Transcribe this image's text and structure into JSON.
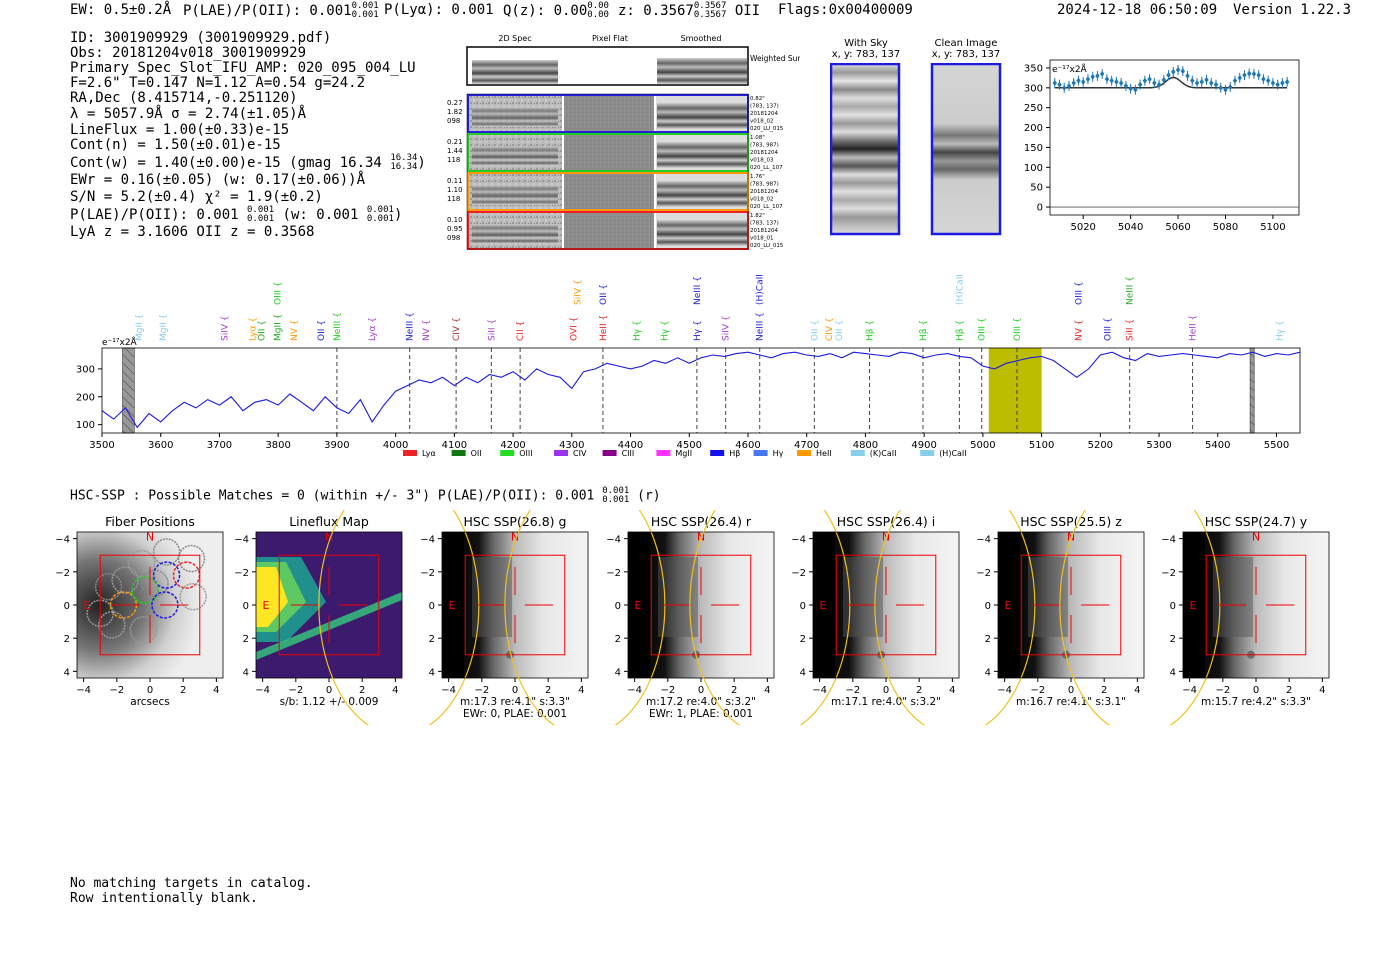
{
  "header": {
    "ew": "EW: 0.5±0.2Å",
    "plae_label": "P(LAE)/P(OII): 0.001",
    "plae_hi": "0.001",
    "plae_lo": "0.001",
    "plya": "P(Lyα): 0.001",
    "qz_label": "Q(z): 0.00",
    "qz_hi": "0.00",
    "qz_lo": "0.00",
    "z_label": "z: 0.3567",
    "z_hi": "0.3567",
    "z_lo": "0.3567",
    "z_line": "OII",
    "flags": "Flags:0x00400009",
    "timestamp": "2024-12-18 06:50:09",
    "version": "Version 1.22.3"
  },
  "info": {
    "id": "ID: 3001909929 (3001909929.pdf)",
    "obs": "Obs: 20181204v018_3001909929",
    "primary": "Primary Spec_Slot_IFU_AMP: 020_095_004_LU",
    "fit": "F=2.6\"  T=0.147  N=1.12  A=0.54  g=24.2",
    "radec": "RA,Dec (8.415714,-0.251120)",
    "lambda": "λ = 5057.9Å   σ = 2.74(±1.05)Å",
    "lineflux": "LineFlux = 1.00(±0.33)e-15",
    "contn": "Cont(n) = 1.50(±0.01)e-15",
    "contw": "Cont(w) = 1.40(±0.00)e-15 (gmag 16.34",
    "contw_hi": "16.34",
    "contw_lo": "16.34",
    "contw_end": ")",
    "ewr": "EWr = 0.16(±0.05) (w: 0.17(±0.06))Å",
    "sn": "S/N = 5.2(±0.4)  χ² = 1.9(±0.2)",
    "plae": "P(LAE)/P(OII): 0.001",
    "plae_hi": "0.001",
    "plae_lo": "0.001",
    "plae_w": "(w: 0.001",
    "plae_w_hi": "0.001",
    "plae_w_lo": "0.001",
    "plae_w_end": ")",
    "lya": "LyA z = 3.1606   OII z = 0.3568"
  },
  "cutouts": {
    "col_titles": [
      "2D Spec",
      "Pixel Flat",
      "Smoothed"
    ],
    "weighted_sum": "Weighted Sum",
    "rows": [
      {
        "left": [
          "0.27",
          "1.82",
          "098"
        ],
        "right": [
          "0.82\"",
          "(783, 137)",
          "20181204",
          "v018_02",
          "020_LU_015"
        ],
        "color": "#2222dd"
      },
      {
        "left": [
          "0.21",
          "1.44",
          "118"
        ],
        "right": [
          "1.08\"",
          "(783, 987)",
          "20181204",
          "v018_03",
          "020_LL_107"
        ],
        "color": "#22cc22"
      },
      {
        "left": [
          "0.11",
          "1.10",
          "118"
        ],
        "right": [
          "1.76\"",
          "(783, 987)",
          "20181204",
          "v018_02",
          "020_LL_107"
        ],
        "color": "#ff9900"
      },
      {
        "left": [
          "0.10",
          "0.95",
          "098"
        ],
        "right": [
          "1.82\"",
          "(783, 137)",
          "20181204",
          "v018_01",
          "020_LU_015"
        ],
        "color": "#ee2222"
      }
    ],
    "sky_title": "With Sky",
    "sky_sub": "x, y: 783, 137",
    "clean_title": "Clean Image",
    "clean_sub": "x, y: 783, 137"
  },
  "zoom_chart": {
    "type": "scatter",
    "ylabel": "e⁻¹⁷x2Å",
    "xticks": [
      5020,
      5040,
      5060,
      5080,
      5100
    ],
    "yticks": [
      0,
      50,
      100,
      150,
      200,
      250,
      300,
      350
    ],
    "xlim": [
      5006,
      5111
    ],
    "ylim": [
      -20,
      370
    ],
    "x": [
      5008,
      5010,
      5012,
      5014,
      5016,
      5018,
      5020,
      5022,
      5024,
      5026,
      5028,
      5030,
      5032,
      5034,
      5036,
      5038,
      5040,
      5042,
      5044,
      5046,
      5048,
      5050,
      5052,
      5054,
      5056,
      5058,
      5060,
      5062,
      5064,
      5066,
      5068,
      5070,
      5072,
      5074,
      5076,
      5078,
      5080,
      5082,
      5084,
      5086,
      5088,
      5090,
      5092,
      5094,
      5096,
      5098,
      5100,
      5102,
      5104,
      5106
    ],
    "y": [
      312,
      308,
      300,
      305,
      312,
      318,
      315,
      322,
      328,
      330,
      335,
      322,
      318,
      315,
      312,
      305,
      298,
      295,
      308,
      318,
      322,
      312,
      308,
      320,
      332,
      340,
      345,
      342,
      330,
      318,
      312,
      315,
      320,
      312,
      308,
      300,
      295,
      302,
      318,
      325,
      332,
      336,
      335,
      332,
      322,
      318,
      312,
      308,
      312,
      315
    ],
    "model_baseline": 300,
    "model_peak": 326,
    "model_center": 5058,
    "model_sigma": 3.2
  },
  "spectrum": {
    "type": "line",
    "ylabel": "e⁻¹⁷x2Å",
    "xlim": [
      3500,
      5540
    ],
    "ylim": [
      70,
      375
    ],
    "xticks": [
      3500,
      3600,
      3700,
      3800,
      3900,
      4000,
      4100,
      4200,
      4300,
      4400,
      4500,
      4600,
      4700,
      4800,
      4900,
      5000,
      5100,
      5200,
      5300,
      5400,
      5500
    ],
    "yticks": [
      100,
      200,
      300
    ],
    "x": [
      3500,
      3520,
      3540,
      3560,
      3580,
      3600,
      3620,
      3640,
      3660,
      3680,
      3700,
      3720,
      3740,
      3760,
      3780,
      3800,
      3820,
      3840,
      3860,
      3880,
      3900,
      3920,
      3940,
      3960,
      3980,
      4000,
      4020,
      4040,
      4060,
      4080,
      4100,
      4120,
      4140,
      4160,
      4180,
      4200,
      4220,
      4240,
      4260,
      4280,
      4300,
      4320,
      4340,
      4360,
      4380,
      4400,
      4420,
      4440,
      4460,
      4480,
      4500,
      4520,
      4540,
      4560,
      4580,
      4600,
      4620,
      4640,
      4660,
      4680,
      4700,
      4720,
      4740,
      4760,
      4780,
      4800,
      4820,
      4840,
      4860,
      4880,
      4900,
      4920,
      4940,
      4960,
      4980,
      5000,
      5020,
      5040,
      5060,
      5080,
      5100,
      5120,
      5140,
      5160,
      5180,
      5200,
      5220,
      5240,
      5260,
      5280,
      5300,
      5320,
      5340,
      5360,
      5380,
      5400,
      5420,
      5440,
      5460,
      5480,
      5500,
      5520,
      5540
    ],
    "y": [
      150,
      120,
      160,
      90,
      140,
      110,
      150,
      180,
      160,
      190,
      170,
      200,
      150,
      180,
      190,
      170,
      210,
      180,
      150,
      200,
      160,
      140,
      190,
      110,
      170,
      220,
      240,
      260,
      250,
      270,
      240,
      270,
      250,
      280,
      270,
      290,
      260,
      300,
      280,
      270,
      230,
      290,
      300,
      320,
      310,
      300,
      310,
      330,
      320,
      340,
      320,
      340,
      350,
      345,
      355,
      360,
      350,
      340,
      355,
      360,
      350,
      345,
      355,
      340,
      360,
      355,
      350,
      345,
      360,
      355,
      340,
      350,
      355,
      345,
      340,
      310,
      300,
      320,
      330,
      340,
      345,
      330,
      300,
      270,
      300,
      350,
      360,
      340,
      330,
      355,
      345,
      350,
      355,
      350,
      345,
      340,
      355,
      350,
      360,
      345,
      355,
      350,
      360
    ],
    "lines": [
      {
        "name": "MgII",
        "x": 3563,
        "color": "#87ceeb",
        "level": 1,
        "dashed": false
      },
      {
        "name": "MgII",
        "x": 3604,
        "color": "#87ceeb",
        "level": 1,
        "dashed": false
      },
      {
        "name": "SiIV",
        "x": 3709,
        "color": "#a040d0",
        "level": 1,
        "dashed": false
      },
      {
        "name": "Lyα",
        "x": 3756,
        "color": "#ff9900",
        "level": 1,
        "dashed": false
      },
      {
        "name": "OII",
        "x": 3772,
        "color": "#22aa22",
        "level": 1,
        "dashed": false
      },
      {
        "name": "MgII",
        "x": 3799,
        "color": "#22aa22",
        "level": 1,
        "dashed": false
      },
      {
        "name": "OIII",
        "x": 3799,
        "color": "#22cc22",
        "level": 0,
        "dashed": false
      },
      {
        "name": "NV",
        "x": 3827,
        "color": "#ff9900",
        "level": 1,
        "dashed": false
      },
      {
        "name": "OII",
        "x": 3873,
        "color": "#2222dd",
        "level": 1,
        "dashed": false
      },
      {
        "name": "NeIII",
        "x": 3900,
        "color": "#22cc22",
        "level": 1,
        "dashed": true
      },
      {
        "name": "Lyα",
        "x": 3960,
        "color": "#a040d0",
        "level": 1,
        "dashed": false
      },
      {
        "name": "NeIII",
        "x": 4024,
        "color": "#2222dd",
        "level": 1,
        "dashed": true
      },
      {
        "name": "NV",
        "x": 4052,
        "color": "#a040d0",
        "level": 1,
        "dashed": false
      },
      {
        "name": "CIV",
        "x": 4103,
        "color": "#b03030",
        "level": 1,
        "dashed": true
      },
      {
        "name": "SiII",
        "x": 4163,
        "color": "#a040d0",
        "level": 1,
        "dashed": true
      },
      {
        "name": "CII",
        "x": 4212,
        "color": "#ee2222",
        "level": 1,
        "dashed": true
      },
      {
        "name": "OVI",
        "x": 4303,
        "color": "#ee2222",
        "level": 1,
        "dashed": false
      },
      {
        "name": "SiIV",
        "x": 4310,
        "color": "#ff9900",
        "level": 0,
        "dashed": false
      },
      {
        "name": "HeII",
        "x": 4353,
        "color": "#ee2222",
        "level": 1,
        "dashed": true
      },
      {
        "name": "OII",
        "x": 4353,
        "color": "#2222dd",
        "level": 0,
        "dashed": false
      },
      {
        "name": "Hγ",
        "x": 4410,
        "color": "#22cc22",
        "level": 1,
        "dashed": false
      },
      {
        "name": "Hγ",
        "x": 4458,
        "color": "#22cc22",
        "level": 1,
        "dashed": false
      },
      {
        "name": "Hγ",
        "x": 4513,
        "color": "#2222dd",
        "level": 1,
        "dashed": true
      },
      {
        "name": "NeIII",
        "x": 4513,
        "color": "#2222dd",
        "level": 0,
        "dashed": false
      },
      {
        "name": "SiIV",
        "x": 4562,
        "color": "#a040d0",
        "level": 1,
        "dashed": true
      },
      {
        "name": "NeIII",
        "x": 4620,
        "color": "#2222dd",
        "level": 1,
        "dashed": true
      },
      {
        "name": "(H)CaII",
        "x": 4620,
        "color": "#2222dd",
        "level": 0,
        "dashed": false
      },
      {
        "name": "OII",
        "x": 4713,
        "color": "#87ceeb",
        "level": 1,
        "dashed": true
      },
      {
        "name": "CIV",
        "x": 4738,
        "color": "#ff9900",
        "level": 1,
        "dashed": false
      },
      {
        "name": "OII",
        "x": 4755,
        "color": "#87ceeb",
        "level": 1,
        "dashed": false
      },
      {
        "name": "Hβ",
        "x": 4807,
        "color": "#22cc22",
        "level": 1,
        "dashed": true
      },
      {
        "name": "Hβ",
        "x": 4898,
        "color": "#22cc22",
        "level": 1,
        "dashed": true
      },
      {
        "name": "Hβ",
        "x": 4960,
        "color": "#22cc22",
        "level": 1,
        "dashed": true
      },
      {
        "name": "(H)CaII",
        "x": 4960,
        "color": "#87ceeb",
        "level": 0,
        "dashed": false
      },
      {
        "name": "OIII",
        "x": 4998,
        "color": "#22cc22",
        "level": 1,
        "dashed": true
      },
      {
        "name": "OIII",
        "x": 5058,
        "color": "#22cc22",
        "level": 1,
        "dashed": true
      },
      {
        "name": "NV",
        "x": 5163,
        "color": "#ee2222",
        "level": 1,
        "dashed": false
      },
      {
        "name": "OIII",
        "x": 5163,
        "color": "#2222dd",
        "level": 0,
        "dashed": false
      },
      {
        "name": "OIII",
        "x": 5212,
        "color": "#2222dd",
        "level": 1,
        "dashed": false
      },
      {
        "name": "SiII",
        "x": 5250,
        "color": "#ee2222",
        "level": 1,
        "dashed": true
      },
      {
        "name": "NeIII",
        "x": 5250,
        "color": "#22aa22",
        "level": 0,
        "dashed": false
      },
      {
        "name": "HeII",
        "x": 5357,
        "color": "#a040d0",
        "level": 1,
        "dashed": true
      },
      {
        "name": "Hγ",
        "x": 5505,
        "color": "#87ceeb",
        "level": 1,
        "dashed": false
      }
    ],
    "mask_regions": [
      [
        3535,
        3555
      ],
      [
        5455,
        5462
      ]
    ],
    "highlight_region": [
      5010,
      5100
    ],
    "legend": [
      {
        "label": "Lyα",
        "color": "#ee2222"
      },
      {
        "label": "OII",
        "color": "#117711"
      },
      {
        "label": "OIII",
        "color": "#22dd22"
      },
      {
        "label": "CIV",
        "color": "#9933ee"
      },
      {
        "label": "CIII",
        "color": "#880088"
      },
      {
        "label": "MgII",
        "color": "#ff33ff"
      },
      {
        "label": "Hβ",
        "color": "#1111ee"
      },
      {
        "label": "Hγ",
        "color": "#4477ee"
      },
      {
        "label": "HeII",
        "color": "#ff9900"
      },
      {
        "label": "(K)CaII",
        "color": "#87ceeb"
      },
      {
        "label": "(H)CaII",
        "color": "#87ceeb"
      }
    ]
  },
  "hsc_header": {
    "text": "HSC-SSP : Possible Matches = 0 (within +/- 3\")  P(LAE)/P(OII): 0.001",
    "hi": "0.001",
    "lo": "0.001",
    "end": "(r)"
  },
  "thumbs": [
    {
      "title": "Fiber Positions",
      "xlabel": "arcsecs",
      "sub": ""
    },
    {
      "title": "Lineflux Map",
      "xlabel": "s/b: 1.12 +/- 0.009",
      "sub": ""
    },
    {
      "title": "HSC SSP(26.8) g",
      "xlabel": "m:17.3  re:4.1\"  s:3.3\"",
      "sub": "EWr: 0, PLAE: 0.001"
    },
    {
      "title": "HSC SSP(26.4) r",
      "xlabel": "m:17.2  re:4.0\"  s:3.2\"",
      "sub": "EWr: 1, PLAE: 0.001"
    },
    {
      "title": "HSC SSP(26.4) i",
      "xlabel": "m:17.1  re:4.0\"  s:3.2\"",
      "sub": ""
    },
    {
      "title": "HSC SSP(25.5) z",
      "xlabel": "m:16.7  re:4.1\"  s:3.1\"",
      "sub": ""
    },
    {
      "title": "HSC SSP(24.7) y",
      "xlabel": "m:15.7  re:4.2\"  s:3.3\"",
      "sub": ""
    }
  ],
  "thumb_axes": {
    "ticks": [
      "−4",
      "−2",
      "0",
      "2",
      "4"
    ],
    "north": "N",
    "east": "E"
  },
  "footer": {
    "line1": "No matching targets in catalog.",
    "line2": "Row intentionally blank."
  }
}
